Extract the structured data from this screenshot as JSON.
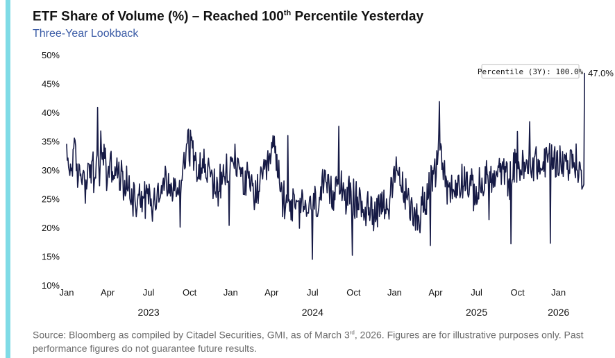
{
  "header": {
    "title_before": "ETF Share of Volume (%) – Reached 100",
    "title_sup": "th",
    "title_after": " Percentile Yesterday",
    "subtitle": "Three-Year Lookback"
  },
  "footer": {
    "text_before": "Source: Bloomberg as compiled by Citadel Securities, GMI, as of March 3",
    "text_sup": "rd",
    "text_after": ", 2026. Figures are for illustrative purposes only. Past performance figures do not guarantee future results."
  },
  "colors": {
    "line": "#161a45",
    "accent": "#7fdbe6",
    "subtitle": "#3a5ba6"
  },
  "chart_data": {
    "type": "line",
    "title": "ETF Share of Volume (%) – Reached 100th Percentile Yesterday",
    "subtitle": "Three-Year Lookback",
    "xlabel": "",
    "ylabel": "",
    "ylim": [
      10,
      50
    ],
    "grid": false,
    "x_unit": "months since Jan 2023",
    "xlim": [
      0,
      38.1
    ],
    "y_ticks": [
      10,
      15,
      20,
      25,
      30,
      35,
      40,
      45,
      50
    ],
    "y_tick_labels": [
      "10%",
      "15%",
      "20%",
      "25%",
      "30%",
      "35%",
      "40%",
      "45%",
      "50%"
    ],
    "x_ticks": [
      0,
      3,
      6,
      9,
      12,
      15,
      18,
      21,
      24,
      27,
      30,
      33,
      36
    ],
    "x_tick_labels": [
      "Jan",
      "Apr",
      "Jul",
      "Oct",
      "Jan",
      "Apr",
      "Jul",
      "Oct",
      "Jan",
      "Apr",
      "Jul",
      "Oct",
      "Jan"
    ],
    "year_labels": [
      {
        "x": 6,
        "label": "2023"
      },
      {
        "x": 18,
        "label": "2024"
      },
      {
        "x": 30,
        "label": "2025"
      },
      {
        "x": 36,
        "label": "2026"
      }
    ],
    "series": [
      {
        "name": "ETF Share of Volume (%)",
        "anchors": [
          [
            0,
            32
          ],
          [
            0.3,
            30
          ],
          [
            0.5,
            34
          ],
          [
            0.8,
            29
          ],
          [
            1.0,
            30
          ],
          [
            1.4,
            28
          ],
          [
            1.8,
            31
          ],
          [
            2.2,
            29
          ],
          [
            2.5,
            30
          ],
          [
            2.9,
            28
          ],
          [
            2.3,
            30
          ],
          [
            2.2,
            30
          ],
          [
            2.25,
            41
          ],
          [
            2.5,
            34
          ],
          [
            2.8,
            33
          ],
          [
            3.1,
            31
          ],
          [
            3.5,
            30
          ],
          [
            3.8,
            29
          ],
          [
            4.2,
            28
          ],
          [
            4.6,
            27
          ],
          [
            5.0,
            25
          ],
          [
            5.3,
            27
          ],
          [
            5.6,
            25
          ],
          [
            6.0,
            26
          ],
          [
            6.4,
            25
          ],
          [
            6.8,
            27
          ],
          [
            7.2,
            28
          ],
          [
            7.6,
            27
          ],
          [
            8.0,
            26
          ],
          [
            8.4,
            29
          ],
          [
            8.8,
            35
          ],
          [
            9.1,
            34
          ],
          [
            9.5,
            32
          ],
          [
            9.9,
            31
          ],
          [
            10.3,
            30
          ],
          [
            10.7,
            28
          ],
          [
            11.1,
            27
          ],
          [
            11.5,
            28
          ],
          [
            12.0,
            31
          ],
          [
            12.3,
            32
          ],
          [
            12.7,
            30
          ],
          [
            13.1,
            28
          ],
          [
            13.5,
            27
          ],
          [
            13.9,
            26
          ],
          [
            14.3,
            28
          ],
          [
            14.7,
            30
          ],
          [
            15.1,
            34
          ],
          [
            15.4,
            32
          ],
          [
            15.6,
            27
          ],
          [
            16.0,
            25
          ],
          [
            16.5,
            24
          ],
          [
            17.0,
            23
          ],
          [
            17.5,
            24
          ],
          [
            17.9,
            23
          ],
          [
            18.4,
            25
          ],
          [
            18.8,
            27
          ],
          [
            19.2,
            26
          ],
          [
            19.5,
            25
          ],
          [
            19.8,
            30
          ],
          [
            20.0,
            28
          ],
          [
            20.4,
            26
          ],
          [
            20.8,
            25
          ],
          [
            21.2,
            25
          ],
          [
            21.6,
            24
          ],
          [
            22.0,
            23
          ],
          [
            22.4,
            23
          ],
          [
            22.8,
            24
          ],
          [
            23.2,
            25
          ],
          [
            23.6,
            24
          ],
          [
            24.0,
            28
          ],
          [
            24.2,
            30
          ],
          [
            24.6,
            27
          ],
          [
            25.0,
            24
          ],
          [
            25.4,
            23
          ],
          [
            25.8,
            22
          ],
          [
            26.2,
            25
          ],
          [
            26.6,
            27
          ],
          [
            27.0,
            29
          ],
          [
            27.3,
            36
          ],
          [
            27.5,
            31
          ],
          [
            27.9,
            27
          ],
          [
            28.3,
            26
          ],
          [
            28.7,
            28
          ],
          [
            29.1,
            29
          ],
          [
            29.5,
            27
          ],
          [
            29.9,
            26
          ],
          [
            30.3,
            27
          ],
          [
            30.7,
            29
          ],
          [
            31.1,
            28
          ],
          [
            31.5,
            29
          ],
          [
            31.9,
            30
          ],
          [
            32.3,
            28
          ],
          [
            32.7,
            30
          ],
          [
            33.1,
            31
          ],
          [
            33.5,
            30
          ],
          [
            33.9,
            31
          ],
          [
            34.3,
            32
          ],
          [
            34.7,
            30
          ],
          [
            35.1,
            32
          ],
          [
            35.5,
            33
          ],
          [
            35.9,
            31
          ],
          [
            36.3,
            32
          ],
          [
            36.7,
            31
          ],
          [
            37.1,
            32
          ],
          [
            37.4,
            31
          ],
          [
            37.6,
            29
          ]
        ],
        "spikes": [
          [
            2.25,
            41
          ],
          [
            8.9,
            37.2
          ],
          [
            16.2,
            36.1
          ],
          [
            19.9,
            37.7
          ],
          [
            27.3,
            42
          ],
          [
            33.0,
            36.8
          ],
          [
            33.9,
            38.5
          ],
          [
            2.0,
            26.2
          ],
          [
            5.1,
            22.0
          ],
          [
            6.3,
            21.2
          ],
          [
            8.3,
            20.2
          ],
          [
            11.9,
            20.5
          ],
          [
            15.8,
            22.0
          ],
          [
            18.0,
            14.6
          ],
          [
            20.9,
            15.3
          ],
          [
            25.8,
            20.0
          ],
          [
            26.6,
            17.0
          ],
          [
            30.9,
            21.5
          ],
          [
            32.5,
            17.3
          ],
          [
            35.4,
            17.4
          ]
        ],
        "last_point": [
          37.9,
          47.0
        ]
      }
    ],
    "annotations": [
      {
        "text": "Percentile (3Y): 100.0%",
        "anchor_x": 37.9,
        "anchor_y": 47.0,
        "placement": "left of last point"
      },
      {
        "text": "47.0%",
        "anchor_x": 37.9,
        "anchor_y": 47.0,
        "placement": "right of last point"
      }
    ]
  }
}
